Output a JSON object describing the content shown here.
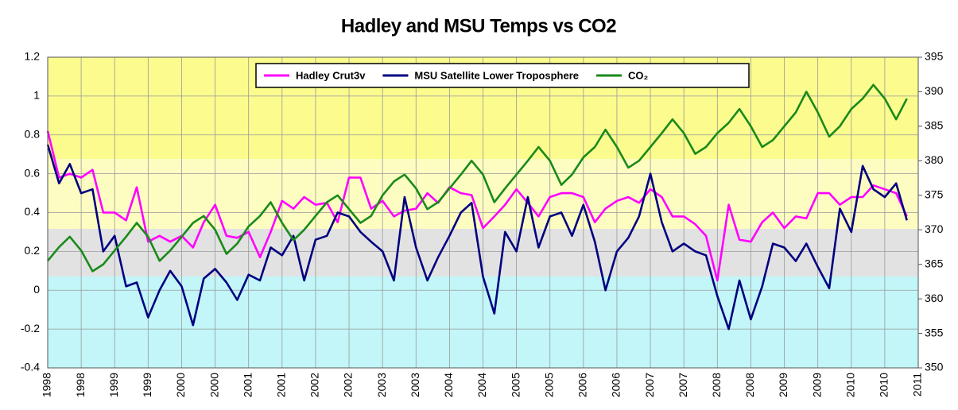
{
  "chart_data": {
    "type": "line",
    "title": "Hadley and MSU Temps vs CO2",
    "legend": "top",
    "grid": true,
    "x": [
      1998.0,
      1998.17,
      1998.33,
      1998.5,
      1998.67,
      1998.83,
      1999.0,
      1999.17,
      1999.33,
      1999.5,
      1999.67,
      1999.83,
      2000.0,
      2000.17,
      2000.33,
      2000.5,
      2000.67,
      2000.83,
      2001.0,
      2001.17,
      2001.33,
      2001.5,
      2001.67,
      2001.83,
      2002.0,
      2002.17,
      2002.33,
      2002.5,
      2002.67,
      2002.83,
      2003.0,
      2003.17,
      2003.33,
      2003.5,
      2003.67,
      2003.83,
      2004.0,
      2004.17,
      2004.33,
      2004.5,
      2004.67,
      2004.83,
      2005.0,
      2005.17,
      2005.33,
      2005.5,
      2005.67,
      2005.83,
      2006.0,
      2006.17,
      2006.33,
      2006.5,
      2006.67,
      2006.83,
      2007.0,
      2007.17,
      2007.33,
      2007.5,
      2007.67,
      2007.83,
      2008.0,
      2008.17,
      2008.33,
      2008.5,
      2008.67,
      2008.83,
      2009.0,
      2009.17,
      2009.33,
      2009.5,
      2009.67,
      2009.83,
      2010.0,
      2010.17,
      2010.33,
      2010.5,
      2010.67,
      2010.83
    ],
    "xlim": [
      1998,
      2011
    ],
    "xticks": [
      {
        "value": 1998.0,
        "label": "1998"
      },
      {
        "value": 1998.5,
        "label": "1998"
      },
      {
        "value": 1999.0,
        "label": "1999"
      },
      {
        "value": 1999.5,
        "label": "1999"
      },
      {
        "value": 2000.0,
        "label": "2000"
      },
      {
        "value": 2000.5,
        "label": "2000"
      },
      {
        "value": 2001.0,
        "label": "2001"
      },
      {
        "value": 2001.5,
        "label": "2001"
      },
      {
        "value": 2002.0,
        "label": "2002"
      },
      {
        "value": 2002.5,
        "label": "2002"
      },
      {
        "value": 2003.0,
        "label": "2003"
      },
      {
        "value": 2003.5,
        "label": "2003"
      },
      {
        "value": 2004.0,
        "label": "2004"
      },
      {
        "value": 2004.5,
        "label": "2004"
      },
      {
        "value": 2005.0,
        "label": "2005"
      },
      {
        "value": 2005.5,
        "label": "2005"
      },
      {
        "value": 2006.0,
        "label": "2006"
      },
      {
        "value": 2006.5,
        "label": "2006"
      },
      {
        "value": 2007.0,
        "label": "2007"
      },
      {
        "value": 2007.5,
        "label": "2007"
      },
      {
        "value": 2008.0,
        "label": "2008"
      },
      {
        "value": 2008.5,
        "label": "2008"
      },
      {
        "value": 2009.0,
        "label": "2009"
      },
      {
        "value": 2009.5,
        "label": "2009"
      },
      {
        "value": 2010.0,
        "label": "2010"
      },
      {
        "value": 2010.5,
        "label": "2010"
      },
      {
        "value": 2011.0,
        "label": "2011"
      }
    ],
    "ylim": [
      -0.4,
      1.2
    ],
    "yticks": [
      -0.4,
      -0.2,
      0,
      0.2,
      0.4,
      0.6,
      0.8,
      1,
      1.2
    ],
    "y2lim": [
      350,
      395
    ],
    "y2ticks": [
      350,
      355,
      360,
      365,
      370,
      375,
      380,
      385,
      390,
      395
    ],
    "series": [
      {
        "name": "Hadley Crut3v",
        "color": "#ff00ff",
        "values": [
          0.82,
          0.58,
          0.6,
          0.58,
          0.62,
          0.4,
          0.4,
          0.36,
          0.53,
          0.25,
          0.28,
          0.25,
          0.28,
          0.22,
          0.35,
          0.44,
          0.28,
          0.27,
          0.3,
          0.17,
          0.3,
          0.46,
          0.42,
          0.48,
          0.44,
          0.45,
          0.35,
          0.58,
          0.58,
          0.42,
          0.46,
          0.38,
          0.41,
          0.42,
          0.5,
          0.45,
          0.53,
          0.5,
          0.49,
          0.32,
          0.38,
          0.44,
          0.52,
          0.45,
          0.38,
          0.48,
          0.5,
          0.5,
          0.48,
          0.35,
          0.42,
          0.46,
          0.48,
          0.45,
          0.52,
          0.48,
          0.38,
          0.38,
          0.34,
          0.28,
          0.05,
          0.44,
          0.26,
          0.25,
          0.35,
          0.4,
          0.32,
          0.38,
          0.37,
          0.5,
          0.5,
          0.44,
          0.48,
          0.48,
          0.54,
          0.52,
          0.5,
          0.38
        ]
      },
      {
        "name": "MSU Satellite Lower Troposphere",
        "color": "#000080",
        "values": [
          0.75,
          0.55,
          0.65,
          0.5,
          0.52,
          0.2,
          0.28,
          0.02,
          0.04,
          -0.14,
          0.0,
          0.1,
          0.02,
          -0.18,
          0.06,
          0.11,
          0.04,
          -0.05,
          0.08,
          0.05,
          0.22,
          0.18,
          0.28,
          0.05,
          0.26,
          0.28,
          0.4,
          0.38,
          0.3,
          0.25,
          0.2,
          0.05,
          0.48,
          0.22,
          0.05,
          0.17,
          0.28,
          0.4,
          0.45,
          0.07,
          -0.12,
          0.3,
          0.2,
          0.48,
          0.22,
          0.38,
          0.4,
          0.28,
          0.44,
          0.25,
          0.0,
          0.2,
          0.27,
          0.38,
          0.6,
          0.35,
          0.2,
          0.24,
          0.2,
          0.18,
          -0.03,
          -0.2,
          0.05,
          -0.15,
          0.02,
          0.24,
          0.22,
          0.15,
          0.24,
          0.12,
          0.01,
          0.42,
          0.3,
          0.64,
          0.52,
          0.48,
          0.55,
          0.36
        ]
      },
      {
        "name": "CO₂",
        "color": "#1a8a1a",
        "axis": "y2",
        "values": [
          365.5,
          367.5,
          369,
          367,
          364,
          365,
          367,
          369,
          371,
          369,
          365.5,
          367,
          369,
          371,
          372,
          370,
          366.5,
          368,
          370.5,
          372,
          374,
          371,
          368.5,
          370,
          372,
          374,
          375,
          373,
          371,
          372,
          375,
          377,
          378,
          376,
          373,
          374,
          376,
          378,
          380,
          378,
          374,
          376,
          378,
          380,
          382,
          380,
          376.5,
          378,
          380.5,
          382,
          384.5,
          382,
          379,
          380,
          382,
          384,
          386,
          384,
          381,
          382,
          384,
          385.5,
          387.5,
          385,
          382,
          383,
          385,
          387,
          390,
          387,
          383.5,
          385,
          387.5,
          389,
          391,
          389,
          386,
          389
        ]
      }
    ]
  }
}
